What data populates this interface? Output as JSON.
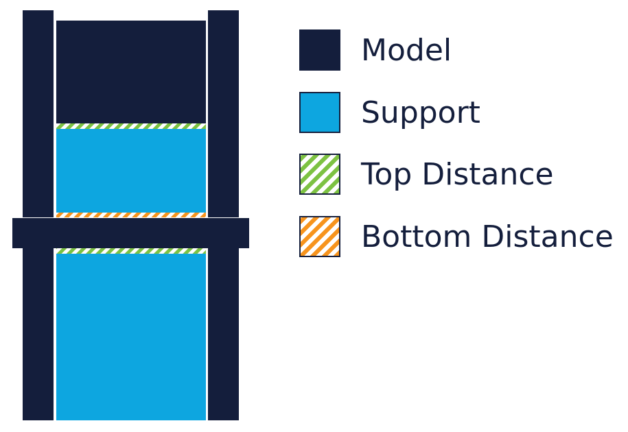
{
  "legend": {
    "items": [
      {
        "key": "model",
        "label": "Model",
        "color": "#141e3c",
        "pattern": "solid"
      },
      {
        "key": "support",
        "label": "Support",
        "color": "#0da6e0",
        "pattern": "solid"
      },
      {
        "key": "top_distance",
        "label": "Top Distance",
        "color": "#7dc242",
        "pattern": "diagonal-stripes"
      },
      {
        "key": "bottom_distance",
        "label": "Bottom Distance",
        "color": "#f7941d",
        "pattern": "diagonal-stripes"
      }
    ]
  },
  "colors": {
    "model": "#141e3c",
    "support": "#0da6e0",
    "top_distance": "#7dc242",
    "bottom_distance": "#f7941d",
    "background": "#ffffff"
  }
}
